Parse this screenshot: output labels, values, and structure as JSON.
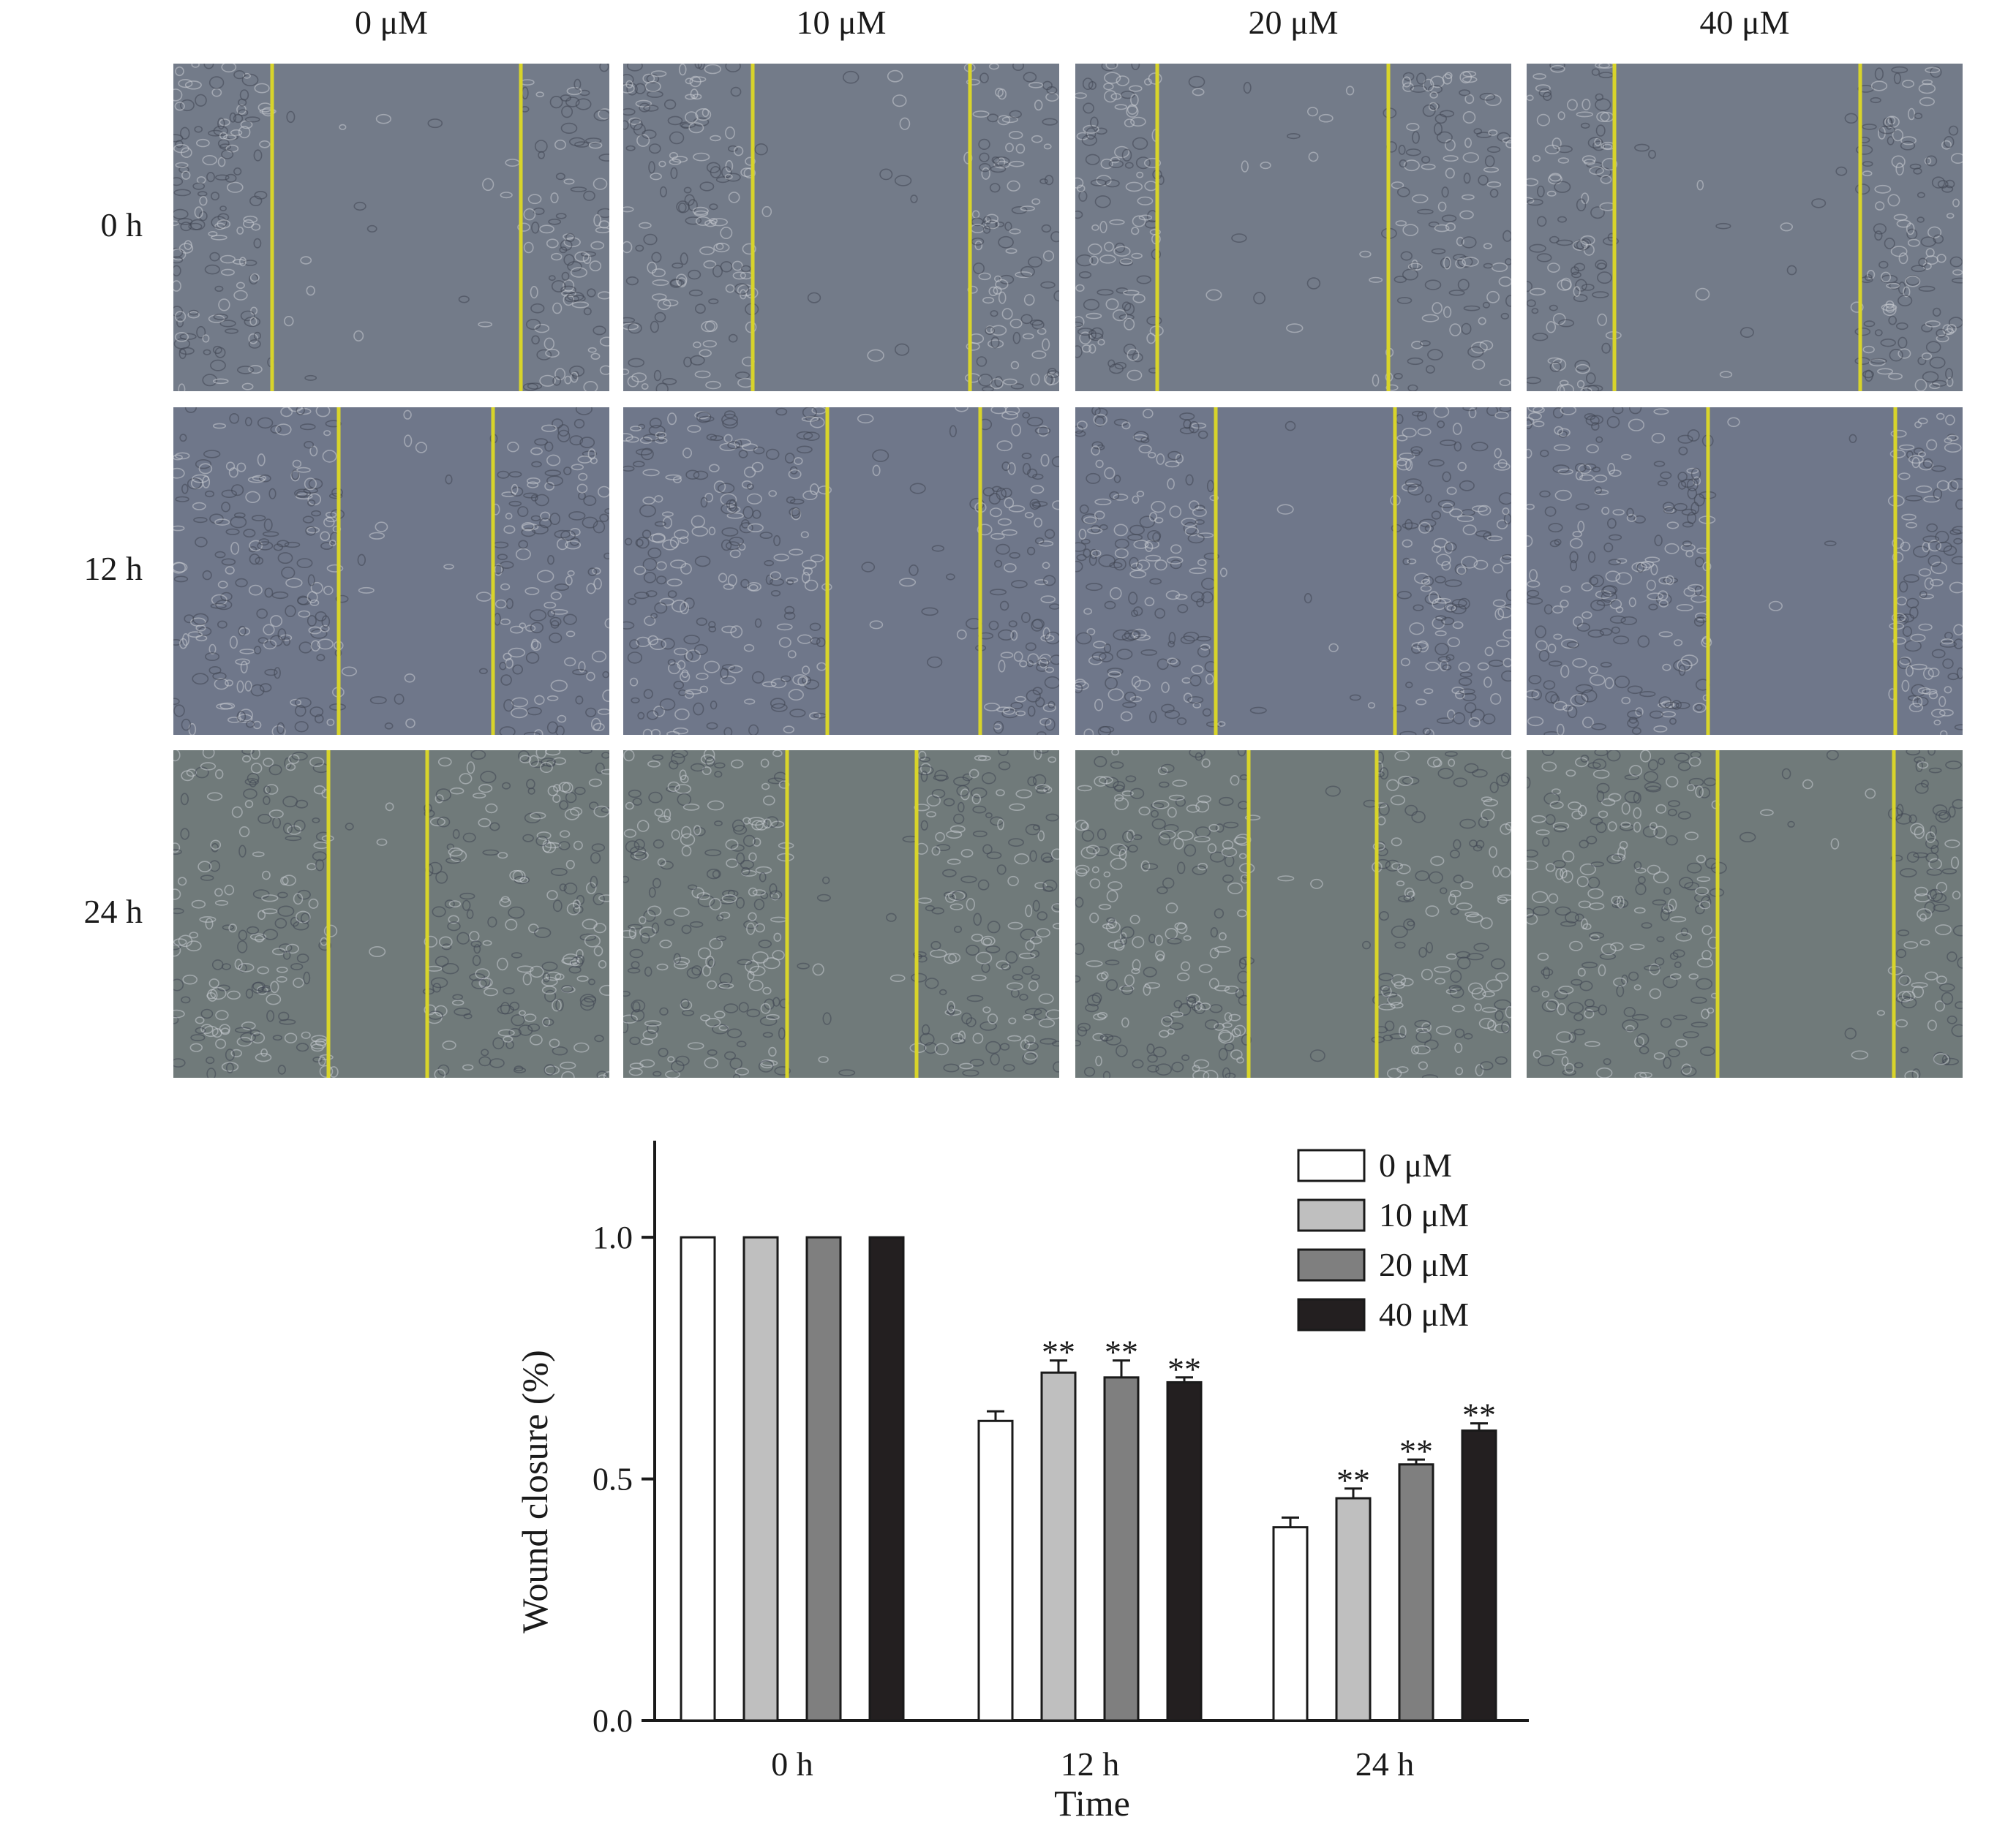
{
  "micrographs": {
    "columns": [
      "0 μM",
      "10 μM",
      "20 μM",
      "40 μM"
    ],
    "rows": [
      "0 h",
      "12 h",
      "24 h"
    ],
    "scratch_line_color": "#d8d42a",
    "tissue_colors": {
      "0 h": "#737b89",
      "12 h": "#6f778a",
      "24 h": "#707a7a"
    }
  },
  "chart_data": {
    "type": "bar",
    "categories": [
      "0 h",
      "12 h",
      "24 h"
    ],
    "xlabel": "Time",
    "ylabel": "Wound closure (%)",
    "ylim": [
      0,
      1.2
    ],
    "yticks": [
      "0.0",
      "0.5",
      "1.0"
    ],
    "legend_position": "top-right",
    "series": [
      {
        "name": "0 μM",
        "color": "#ffffff",
        "values": [
          1.0,
          0.62,
          0.4
        ],
        "errors": [
          0,
          0.02,
          0.02
        ],
        "annotations": [
          "",
          "",
          ""
        ]
      },
      {
        "name": "10 μM",
        "color": "#bfbfbf",
        "values": [
          1.0,
          0.72,
          0.46
        ],
        "errors": [
          0,
          0.025,
          0.02
        ],
        "annotations": [
          "",
          "**",
          "**"
        ]
      },
      {
        "name": "20 μM",
        "color": "#7f7f7f",
        "values": [
          1.0,
          0.71,
          0.53
        ],
        "errors": [
          0,
          0.035,
          0.01
        ],
        "annotations": [
          "",
          "**",
          "**"
        ]
      },
      {
        "name": "40 μM",
        "color": "#231f20",
        "values": [
          1.0,
          0.7,
          0.6
        ],
        "errors": [
          0,
          0.01,
          0.015
        ],
        "annotations": [
          "",
          "**",
          "**"
        ]
      }
    ]
  }
}
